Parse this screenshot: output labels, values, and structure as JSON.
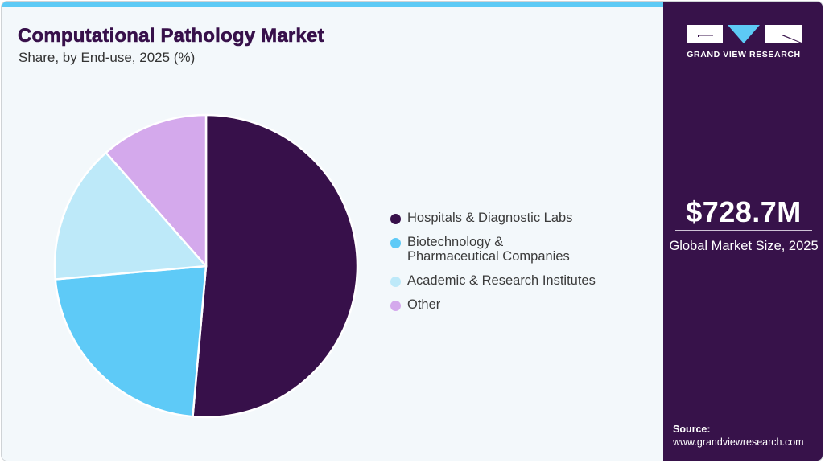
{
  "header": {
    "title": "Computational Pathology Market",
    "subtitle": "Share, by End-use, 2025 (%)"
  },
  "colors": {
    "accent_bar": "#5dcaf5",
    "side_panel": "#37124a",
    "background": "#f3f8fb"
  },
  "legend": {
    "items": [
      {
        "label": "Hospitals & Diagnostic Labs",
        "color": "#37104a"
      },
      {
        "label": "Biotechnology & Pharmaceutical Companies",
        "color": "#5ecaf7"
      },
      {
        "label": "Academic & Research Institutes",
        "color": "#bde9f9"
      },
      {
        "label": "Other",
        "color": "#d4a9ec"
      }
    ]
  },
  "side_panel": {
    "brand": "GRAND VIEW RESEARCH",
    "logo_icon": "gvr-logo-icon",
    "market_value": "$728.7M",
    "market_label": "Global Market Size, 2025",
    "source_title": "Source:",
    "source_url": "www.grandviewresearch.com"
  },
  "chart_data": {
    "type": "pie",
    "title": "Computational Pathology Market",
    "subtitle": "Share, by End-use, 2025 (%)",
    "categories": [
      "Hospitals & Diagnostic Labs",
      "Biotechnology & Pharmaceutical Companies",
      "Academic & Research Institutes",
      "Other"
    ],
    "values": [
      51.4,
      22.2,
      14.9,
      11.5
    ],
    "colors": [
      "#37104a",
      "#5ecaf7",
      "#bde9f9",
      "#d4a9ec"
    ],
    "start_angle": "12 o'clock, clockwise",
    "legend_position": "right",
    "data_labels": false
  }
}
